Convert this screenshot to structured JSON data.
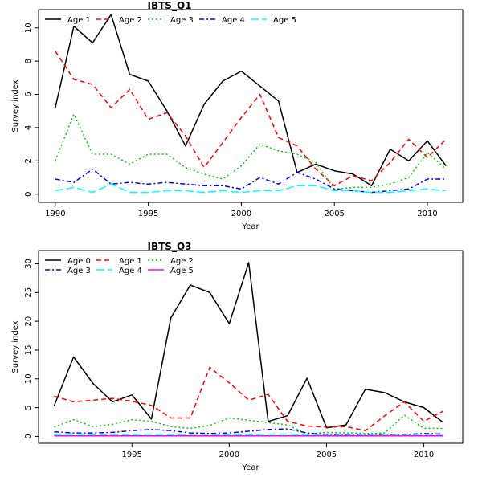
{
  "chart_data": [
    {
      "type": "line",
      "title": "IBTS_Q1",
      "xlabel": "Year",
      "ylabel": "Survey index",
      "xlim": [
        1989.1,
        2011.9
      ],
      "ylim": [
        -0.5,
        11.1
      ],
      "xticks": [
        1990,
        1995,
        2000,
        2005,
        2010
      ],
      "yticks": [
        0,
        2,
        4,
        6,
        8,
        10
      ],
      "legend_position": "top-left, horizontal",
      "x": [
        1990,
        1991,
        1992,
        1993,
        1994,
        1995,
        1996,
        1997,
        1998,
        1999,
        2000,
        2001,
        2002,
        2003,
        2004,
        2005,
        2006,
        2007,
        2008,
        2009,
        2010,
        2011
      ],
      "series": [
        {
          "name": "Age 1",
          "color": "#000000",
          "dash": "solid",
          "values": [
            5.2,
            10.1,
            9.1,
            10.8,
            7.2,
            6.8,
            5.0,
            2.9,
            5.4,
            6.8,
            7.4,
            6.5,
            5.6,
            1.3,
            1.8,
            1.4,
            1.2,
            0.5,
            2.7,
            2.0,
            3.2,
            1.7
          ]
        },
        {
          "name": "Age 2",
          "color": "#ff0000",
          "dash": "dashed",
          "values": [
            8.6,
            6.9,
            6.6,
            5.2,
            6.3,
            4.5,
            4.9,
            3.5,
            1.6,
            3.1,
            4.6,
            6.0,
            3.4,
            2.9,
            1.5,
            0.5,
            1.1,
            0.8,
            1.9,
            3.3,
            2.2,
            3.3
          ]
        },
        {
          "name": "Age 3",
          "color": "#00cc00",
          "dash": "dotted",
          "values": [
            2.0,
            4.8,
            2.4,
            2.4,
            1.8,
            2.4,
            2.4,
            1.6,
            1.2,
            0.9,
            1.7,
            3.0,
            2.6,
            2.4,
            1.9,
            0.3,
            0.4,
            0.4,
            0.6,
            1.0,
            2.5,
            1.5
          ]
        },
        {
          "name": "Age 4",
          "color": "#0000ff",
          "dash": "dashdot",
          "values": [
            0.9,
            0.7,
            1.5,
            0.6,
            0.7,
            0.6,
            0.7,
            0.6,
            0.5,
            0.5,
            0.3,
            1.0,
            0.6,
            1.3,
            0.9,
            0.3,
            0.2,
            0.1,
            0.2,
            0.3,
            0.9,
            0.9
          ]
        },
        {
          "name": "Age 5",
          "color": "#00ffff",
          "dash": "longdash",
          "values": [
            0.2,
            0.4,
            0.1,
            0.6,
            0.1,
            0.1,
            0.2,
            0.2,
            0.1,
            0.2,
            0.1,
            0.2,
            0.2,
            0.5,
            0.5,
            0.2,
            0.2,
            0.1,
            0.1,
            0.2,
            0.3,
            0.2
          ]
        }
      ]
    },
    {
      "type": "line",
      "title": "IBTS_Q3",
      "xlabel": "Year",
      "ylabel": "Survey index",
      "xlim": [
        1990.2,
        2012.0
      ],
      "ylim": [
        -1.2,
        32.3
      ],
      "xticks": [
        1995,
        2000,
        2005,
        2010
      ],
      "yticks": [
        0,
        5,
        10,
        15,
        20,
        25,
        30
      ],
      "legend_position": "top-left, two rows",
      "x": [
        1991,
        1992,
        1993,
        1994,
        1995,
        1996,
        1997,
        1998,
        1999,
        2000,
        2001,
        2002,
        2003,
        2004,
        2005,
        2006,
        2007,
        2008,
        2009,
        2010,
        2011
      ],
      "series": [
        {
          "name": "Age 0",
          "color": "#000000",
          "dash": "solid",
          "values": [
            5.3,
            13.8,
            9.2,
            6.0,
            7.2,
            3.0,
            20.6,
            26.3,
            25.0,
            19.6,
            30.2,
            2.6,
            3.6,
            10.1,
            1.5,
            2.0,
            8.2,
            7.6,
            6.0,
            5.0,
            2.4
          ]
        },
        {
          "name": "Age 1",
          "color": "#ff0000",
          "dash": "dashed",
          "values": [
            7.0,
            6.0,
            6.3,
            6.6,
            6.1,
            5.4,
            3.2,
            3.2,
            12.0,
            9.3,
            6.3,
            7.3,
            2.6,
            1.8,
            1.6,
            1.7,
            1.0,
            3.6,
            6.0,
            2.6,
            4.4
          ]
        },
        {
          "name": "Age 2",
          "color": "#00cc00",
          "dash": "dotted",
          "values": [
            1.6,
            2.9,
            1.7,
            2.1,
            2.9,
            2.6,
            1.7,
            1.4,
            1.9,
            3.2,
            2.8,
            2.4,
            2.0,
            0.4,
            0.7,
            0.6,
            0.5,
            0.6,
            3.7,
            1.4,
            1.4
          ]
        },
        {
          "name": "Age 3",
          "color": "#0000ff",
          "dash": "dashdot",
          "values": [
            0.8,
            0.6,
            0.6,
            0.7,
            1.0,
            1.2,
            1.0,
            0.6,
            0.5,
            0.6,
            0.9,
            1.2,
            1.3,
            0.6,
            0.3,
            0.3,
            0.3,
            0.2,
            0.3,
            0.5,
            0.4
          ]
        },
        {
          "name": "Age 4",
          "color": "#00ffff",
          "dash": "longdash",
          "values": [
            0.3,
            0.4,
            0.3,
            0.2,
            0.3,
            0.4,
            0.3,
            0.2,
            0.2,
            0.3,
            0.3,
            0.4,
            0.4,
            0.3,
            0.2,
            0.2,
            0.2,
            0.2,
            0.2,
            0.2,
            0.2
          ]
        },
        {
          "name": "Age 5",
          "color": "#ff00ff",
          "dash": "solid",
          "values": [
            0.1,
            0.1,
            0.1,
            0.1,
            0.1,
            0.1,
            0.1,
            0.1,
            0.1,
            0.1,
            0.1,
            0.1,
            0.1,
            0.1,
            0.1,
            0.1,
            0.1,
            0.1,
            0.1,
            0.1,
            0.1
          ]
        }
      ]
    }
  ]
}
